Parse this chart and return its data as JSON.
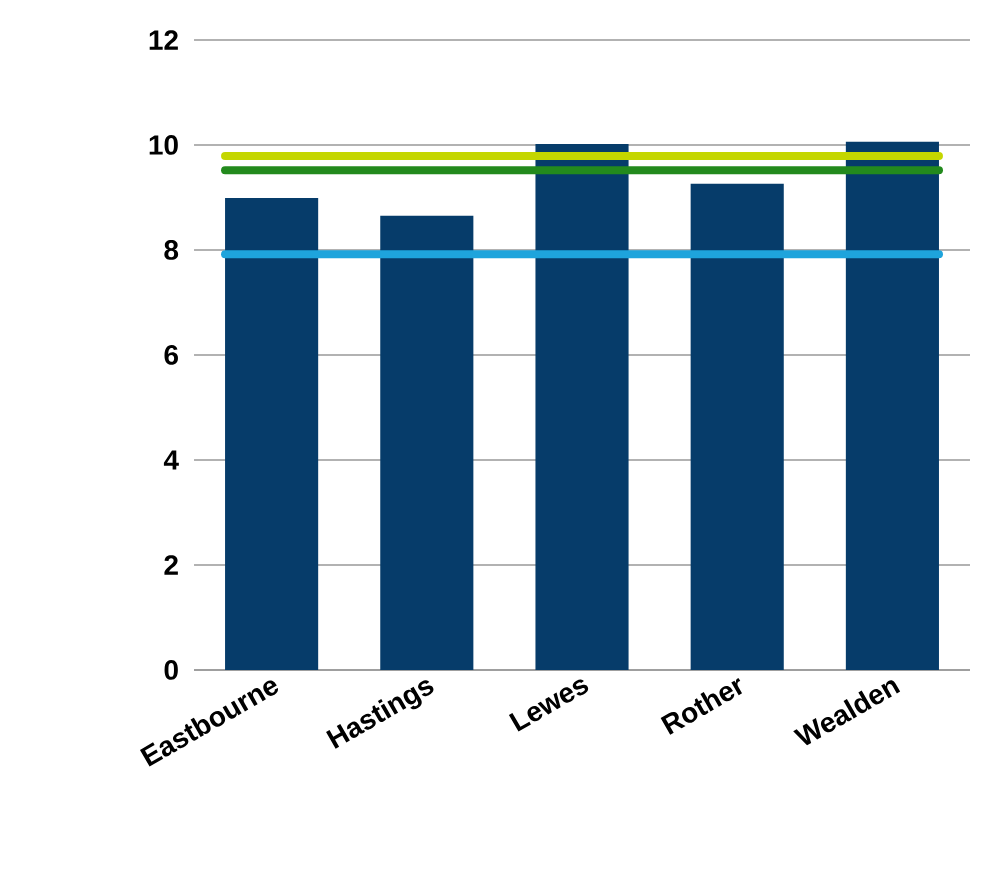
{
  "chart_data": {
    "type": "bar",
    "categories": [
      "Eastbourne",
      "Hastings",
      "Lewes",
      "Rother",
      "Wealden"
    ],
    "values": [
      8.99,
      8.65,
      10.02,
      9.26,
      10.06
    ],
    "color": "#063c6a",
    "ylim": [
      0,
      12
    ],
    "yticks": [
      0,
      2,
      4,
      6,
      8,
      10,
      12
    ],
    "grid": "y",
    "legend": false,
    "ref_lines": [
      {
        "axis": "y",
        "value": 9.79,
        "color": "#c4d600"
      },
      {
        "axis": "y",
        "value": 9.52,
        "color": "#238a1d"
      },
      {
        "axis": "y",
        "value": 7.92,
        "color": "#1ea4dc"
      }
    ]
  }
}
